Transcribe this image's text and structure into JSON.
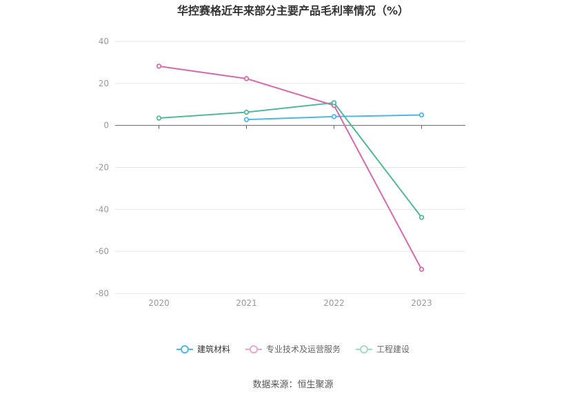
{
  "page_title": "华控赛格近年来部分主要产品毛利率情况（%）",
  "source_note": "数据来源：恒生聚源",
  "colors": {
    "series_0": "#4db6e8",
    "series_1": "#d667b0",
    "series_2": "#4fb89a"
  },
  "chart_data": {
    "type": "line",
    "title": "华控赛格近年来部分主要产品毛利率情况（%）",
    "xlabel": "",
    "ylabel": "",
    "categories": [
      "2020",
      "2021",
      "2022",
      "2023"
    ],
    "y_ticks": [
      "40",
      "20",
      "0",
      "-20",
      "-40",
      "-60",
      "-80"
    ],
    "ylim": [
      -80,
      40
    ],
    "grid": true,
    "legend_position": "bottom",
    "series": [
      {
        "name": "建筑材料",
        "values": [
          null,
          2.8,
          4.2,
          5.0
        ]
      },
      {
        "name": "专业技术及运营服务",
        "values": [
          28.2,
          22.3,
          9.5,
          -68.5
        ]
      },
      {
        "name": "工程建设",
        "values": [
          3.5,
          6.3,
          10.8,
          -43.8
        ]
      }
    ]
  }
}
